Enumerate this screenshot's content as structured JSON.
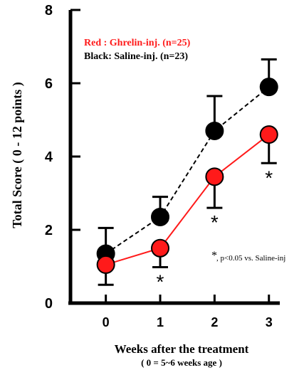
{
  "chart_data": {
    "type": "line",
    "x": [
      0,
      1,
      2,
      3
    ],
    "xticks": [
      "0",
      "1",
      "2",
      "3"
    ],
    "yticks": [
      "0",
      "2",
      "4",
      "6",
      "8"
    ],
    "xlim": [
      -0.65,
      3.2
    ],
    "ylim": [
      0,
      8
    ],
    "xlabel": "Weeks after the treatment",
    "xlabel_sub": "( 0 = 5~6 weeks age )",
    "ylabel": "Total Score ( 0 - 12 points )",
    "grid": false,
    "legend": {
      "placement": "top-left",
      "entries": [
        {
          "text": "Red : Ghrelin-inj. (n=25)",
          "color": "#ff1a1a"
        },
        {
          "text": "Black: Saline-inj. (n=23)",
          "color": "#000000"
        }
      ]
    },
    "series": [
      {
        "key": "saline",
        "values": [
          1.35,
          2.35,
          4.7,
          5.9
        ],
        "error": [
          0.7,
          0.55,
          0.95,
          0.75
        ],
        "error_dir": "up",
        "color": "#000000",
        "line": "dashed"
      },
      {
        "key": "ghrelin",
        "values": [
          1.05,
          1.5,
          3.45,
          4.6
        ],
        "error": [
          0.55,
          0.52,
          0.85,
          0.78
        ],
        "error_dir": "down",
        "color": "#ff1a1a",
        "line": "solid"
      }
    ],
    "significance": {
      "marker": "*",
      "at_x": [
        1,
        2,
        3
      ],
      "note_mark": "*",
      "note": ", p<0.05 vs. Saline-inj"
    }
  }
}
